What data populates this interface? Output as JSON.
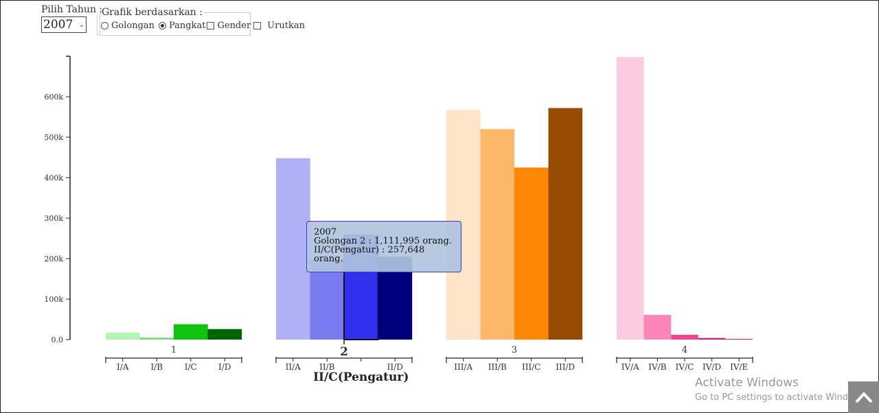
{
  "controls": {
    "year_label": "Pilih Tahun :",
    "year_value": "2007",
    "group_legend": "Grafik berdasarkan :",
    "options": [
      {
        "label": "Golongan",
        "kind": "radio",
        "checked": false
      },
      {
        "label": "Pangkat",
        "kind": "radio",
        "checked": true
      },
      {
        "label": "Gender",
        "kind": "checkbox",
        "checked": false
      },
      {
        "label": "Urutkan",
        "kind": "checkbox",
        "checked": false
      }
    ]
  },
  "tooltip": {
    "line1": "2007",
    "line2": "Golongan 2 : 1,111,995 orang.",
    "line3": "II/C(Pengatur) : 257,648 orang."
  },
  "hover_label": "II/C(Pengatur)",
  "watermark": {
    "title": "Activate Windows",
    "subtitle": "Go to PC settings to activate Windows."
  },
  "chart_data": {
    "type": "bar",
    "ylim": [
      0,
      700000
    ],
    "y_ticks": [
      0,
      100000,
      200000,
      300000,
      400000,
      500000,
      600000
    ],
    "y_tick_labels": [
      "0.0",
      "100k",
      "200k",
      "300k",
      "400k",
      "500k",
      "600k"
    ],
    "hovered": "II/C",
    "groups": [
      {
        "label": "1",
        "bars": [
          {
            "label": "I/A",
            "value": 17000,
            "color": "#b3f5b3"
          },
          {
            "label": "I/B",
            "value": 5000,
            "color": "#7ae07a"
          },
          {
            "label": "I/C",
            "value": 38000,
            "color": "#0fc40f"
          },
          {
            "label": "I/D",
            "value": 26000,
            "color": "#006400"
          }
        ]
      },
      {
        "label": "2",
        "bars": [
          {
            "label": "II/A",
            "value": 448000,
            "color": "#b0b0f7"
          },
          {
            "label": "II/B",
            "value": 200000,
            "color": "#7b7bf0"
          },
          {
            "label": "II/C",
            "value": 257648,
            "color": "#3030ee"
          },
          {
            "label": "II/D",
            "value": 205000,
            "color": "#00007e"
          }
        ]
      },
      {
        "label": "3",
        "bars": [
          {
            "label": "III/A",
            "value": 568000,
            "color": "#fde4c8"
          },
          {
            "label": "III/B",
            "value": 520000,
            "color": "#fdb86a"
          },
          {
            "label": "III/C",
            "value": 425000,
            "color": "#fd8602"
          },
          {
            "label": "III/D",
            "value": 572000,
            "color": "#964c00"
          }
        ]
      },
      {
        "label": "4",
        "bars": [
          {
            "label": "IV/A",
            "value": 698000,
            "color": "#fccbe0"
          },
          {
            "label": "IV/B",
            "value": 61000,
            "color": "#fb85b8"
          },
          {
            "label": "IV/C",
            "value": 12000,
            "color": "#f04595"
          },
          {
            "label": "IV/D",
            "value": 4000,
            "color": "#d0206e"
          },
          {
            "label": "IV/E",
            "value": 1500,
            "color": "#b01050"
          }
        ]
      }
    ]
  }
}
